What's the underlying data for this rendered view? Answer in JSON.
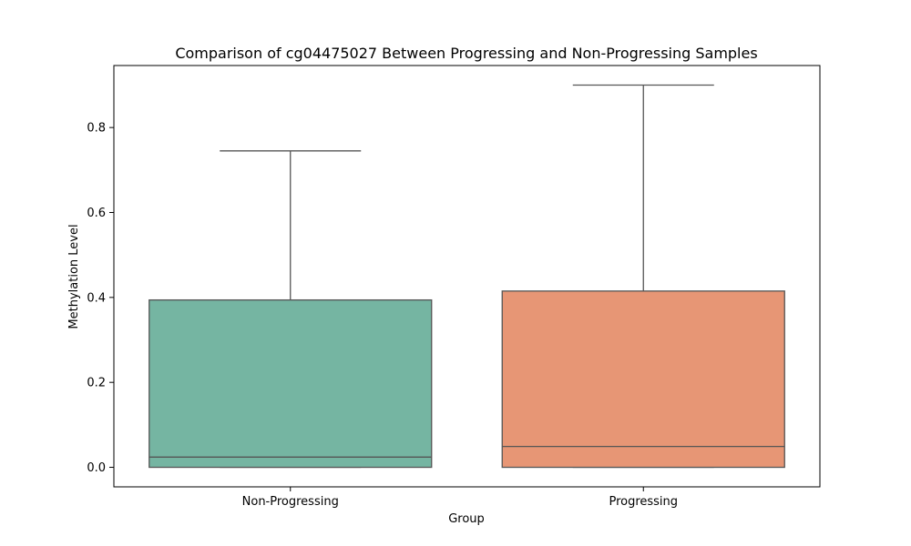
{
  "chart_data": {
    "type": "box",
    "title": "Comparison of cg04475027 Between Progressing and Non-Progressing Samples",
    "xlabel": "Group",
    "ylabel": "Methylation Level",
    "ylim": [
      -0.046,
      0.946
    ],
    "yticks": [
      0.0,
      0.2,
      0.4,
      0.6,
      0.8
    ],
    "ytick_labels": [
      "0.0",
      "0.2",
      "0.4",
      "0.6",
      "0.8"
    ],
    "grid": false,
    "legend": "none",
    "categories": [
      "Non-Progressing",
      "Progressing"
    ],
    "boxes": [
      {
        "category": "Non-Progressing",
        "whisker_low": 0.0,
        "q1": 0.0,
        "median": 0.024,
        "q3": 0.394,
        "whisker_high": 0.745,
        "color": "#75b5a2"
      },
      {
        "category": "Progressing",
        "whisker_low": 0.0,
        "q1": 0.0,
        "median": 0.049,
        "q3": 0.415,
        "whisker_high": 0.9,
        "color": "#e79675"
      }
    ],
    "line_color": "#555555"
  }
}
